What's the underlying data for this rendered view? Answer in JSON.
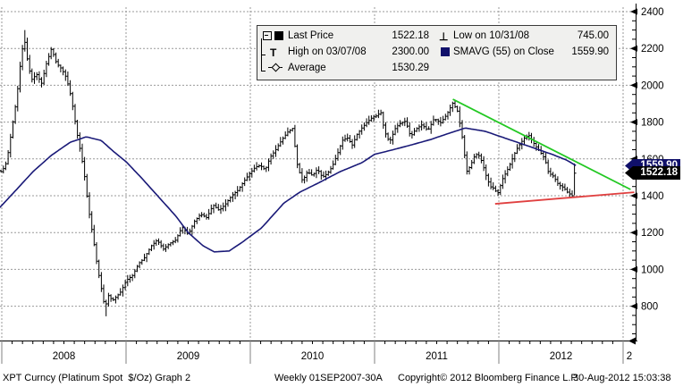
{
  "legend": {
    "col1": [
      {
        "marker": "last-price-square",
        "label": "Last Price",
        "value": "1522.18"
      },
      {
        "marker": "high-marker",
        "label": "High on 03/07/08",
        "value": "2300.00"
      },
      {
        "marker": "average-marker",
        "label": "Average",
        "value": "1530.29"
      }
    ],
    "col2": [
      {
        "marker": "low-marker",
        "label": "Low on 10/31/08",
        "value": "745.00"
      },
      {
        "marker": "smavg-square",
        "label": "SMAVG (55) on Close",
        "value": "1559.90"
      }
    ]
  },
  "price_tags": {
    "smavg_tag": "1559.90",
    "last_tag": "1522.18"
  },
  "footer": {
    "left": "XPT Curncy (Platinum Spot  $/Oz) Graph 2",
    "range": "Weekly 01SEP2007-30A",
    "copyright": "Copyright© 2012 Bloomberg Finance L.P.",
    "timestamp": "30-Aug-2012 15:03:38"
  },
  "colors": {
    "bars": "#000000",
    "smavg": "#1a1a78",
    "trend_green": "#22c822",
    "trend_red": "#e04040",
    "grid": "#999999",
    "axis": "#000000",
    "year_divider": "#808080"
  },
  "chart_data": {
    "type": "ohlc",
    "title": "XPT Curncy (Platinum Spot $/Oz) Weekly",
    "legend_position": "top",
    "grid": true,
    "ylim": [
      595,
      2425
    ],
    "y_ticks": [
      800,
      1000,
      1200,
      1400,
      1600,
      1800,
      2000,
      2200,
      2400
    ],
    "y_minor_step": 50,
    "x_year_boundaries": [
      2008,
      2009,
      2010,
      2011,
      2012,
      2013
    ],
    "year_labels": [
      "2008",
      "2009",
      "2010",
      "2011",
      "2012",
      "2"
    ],
    "x_range": [
      2007.955,
      2012.625
    ],
    "last_price": 1522.18,
    "high": {
      "date": "03/07/08",
      "value": 2300.0
    },
    "low": {
      "date": "10/31/08",
      "value": 745.0
    },
    "average": 1530.29,
    "smavg_last": 1559.9,
    "price_keyframes": [
      [
        2007.955,
        1540
      ],
      [
        2008.0,
        1530
      ],
      [
        2008.04,
        1585
      ],
      [
        2008.08,
        1760
      ],
      [
        2008.12,
        1930
      ],
      [
        2008.15,
        2120
      ],
      [
        2008.18,
        2260
      ],
      [
        2008.21,
        2120
      ],
      [
        2008.24,
        2030
      ],
      [
        2008.28,
        2060
      ],
      [
        2008.32,
        2010
      ],
      [
        2008.36,
        2120
      ],
      [
        2008.4,
        2200
      ],
      [
        2008.44,
        2120
      ],
      [
        2008.48,
        2090
      ],
      [
        2008.52,
        2040
      ],
      [
        2008.56,
        1930
      ],
      [
        2008.6,
        1760
      ],
      [
        2008.63,
        1650
      ],
      [
        2008.66,
        1540
      ],
      [
        2008.7,
        1320
      ],
      [
        2008.74,
        1150
      ],
      [
        2008.77,
        1010
      ],
      [
        2008.8,
        900
      ],
      [
        2008.83,
        790
      ],
      [
        2008.86,
        860
      ],
      [
        2008.89,
        830
      ],
      [
        2008.92,
        850
      ],
      [
        2008.96,
        880
      ],
      [
        2009.0,
        940
      ],
      [
        2009.05,
        965
      ],
      [
        2009.1,
        1030
      ],
      [
        2009.15,
        1065
      ],
      [
        2009.2,
        1125
      ],
      [
        2009.25,
        1160
      ],
      [
        2009.3,
        1110
      ],
      [
        2009.35,
        1140
      ],
      [
        2009.4,
        1160
      ],
      [
        2009.45,
        1230
      ],
      [
        2009.5,
        1190
      ],
      [
        2009.55,
        1260
      ],
      [
        2009.6,
        1300
      ],
      [
        2009.65,
        1280
      ],
      [
        2009.7,
        1350
      ],
      [
        2009.75,
        1320
      ],
      [
        2009.8,
        1355
      ],
      [
        2009.85,
        1400
      ],
      [
        2009.9,
        1430
      ],
      [
        2009.95,
        1480
      ],
      [
        2010.0,
        1525
      ],
      [
        2010.04,
        1555
      ],
      [
        2010.08,
        1565
      ],
      [
        2010.12,
        1540
      ],
      [
        2010.16,
        1610
      ],
      [
        2010.2,
        1645
      ],
      [
        2010.25,
        1700
      ],
      [
        2010.3,
        1745
      ],
      [
        2010.34,
        1765
      ],
      [
        2010.38,
        1560
      ],
      [
        2010.42,
        1480
      ],
      [
        2010.46,
        1530
      ],
      [
        2010.5,
        1510
      ],
      [
        2010.54,
        1545
      ],
      [
        2010.58,
        1500
      ],
      [
        2010.62,
        1520
      ],
      [
        2010.66,
        1560
      ],
      [
        2010.7,
        1625
      ],
      [
        2010.74,
        1700
      ],
      [
        2010.78,
        1715
      ],
      [
        2010.82,
        1675
      ],
      [
        2010.86,
        1735
      ],
      [
        2010.9,
        1770
      ],
      [
        2010.94,
        1800
      ],
      [
        2010.98,
        1825
      ],
      [
        2011.02,
        1835
      ],
      [
        2011.05,
        1855
      ],
      [
        2011.08,
        1750
      ],
      [
        2011.12,
        1690
      ],
      [
        2011.17,
        1770
      ],
      [
        2011.21,
        1795
      ],
      [
        2011.25,
        1805
      ],
      [
        2011.29,
        1720
      ],
      [
        2011.33,
        1760
      ],
      [
        2011.38,
        1785
      ],
      [
        2011.43,
        1755
      ],
      [
        2011.48,
        1820
      ],
      [
        2011.53,
        1795
      ],
      [
        2011.58,
        1840
      ],
      [
        2011.63,
        1905
      ],
      [
        2011.67,
        1855
      ],
      [
        2011.71,
        1700
      ],
      [
        2011.74,
        1530
      ],
      [
        2011.77,
        1560
      ],
      [
        2011.8,
        1610
      ],
      [
        2011.83,
        1630
      ],
      [
        2011.86,
        1590
      ],
      [
        2011.9,
        1505
      ],
      [
        2011.93,
        1450
      ],
      [
        2011.96,
        1440
      ],
      [
        2011.99,
        1410
      ],
      [
        2012.03,
        1490
      ],
      [
        2012.08,
        1555
      ],
      [
        2012.14,
        1650
      ],
      [
        2012.2,
        1710
      ],
      [
        2012.24,
        1730
      ],
      [
        2012.29,
        1675
      ],
      [
        2012.33,
        1640
      ],
      [
        2012.37,
        1600
      ],
      [
        2012.4,
        1525
      ],
      [
        2012.44,
        1505
      ],
      [
        2012.48,
        1460
      ],
      [
        2012.52,
        1445
      ],
      [
        2012.55,
        1420
      ],
      [
        2012.58,
        1405
      ],
      [
        2012.6,
        1395
      ],
      [
        2012.625,
        1522.18
      ]
    ],
    "special_bars": [
      {
        "year": 2008.186,
        "high": 2300
      },
      {
        "year": 2008.83,
        "low": 745
      },
      {
        "year": 2012.61,
        "close": 1522.18,
        "high": 1575,
        "low": 1404
      }
    ],
    "smavg_keyframes": [
      [
        2007.955,
        1315
      ],
      [
        2008.1,
        1420
      ],
      [
        2008.25,
        1530
      ],
      [
        2008.4,
        1620
      ],
      [
        2008.55,
        1690
      ],
      [
        2008.68,
        1720
      ],
      [
        2008.8,
        1700
      ],
      [
        2008.9,
        1640
      ],
      [
        2009.0,
        1585
      ],
      [
        2009.12,
        1500
      ],
      [
        2009.28,
        1380
      ],
      [
        2009.4,
        1290
      ],
      [
        2009.5,
        1200
      ],
      [
        2009.62,
        1128
      ],
      [
        2009.71,
        1095
      ],
      [
        2009.83,
        1100
      ],
      [
        2009.94,
        1150
      ],
      [
        2010.09,
        1225
      ],
      [
        2010.27,
        1360
      ],
      [
        2010.4,
        1420
      ],
      [
        2010.55,
        1470
      ],
      [
        2010.72,
        1530
      ],
      [
        2010.9,
        1580
      ],
      [
        2011.0,
        1625
      ],
      [
        2011.15,
        1650
      ],
      [
        2011.29,
        1675
      ],
      [
        2011.45,
        1705
      ],
      [
        2011.58,
        1735
      ],
      [
        2011.73,
        1768
      ],
      [
        2011.89,
        1750
      ],
      [
        2012.01,
        1722
      ],
      [
        2012.15,
        1690
      ],
      [
        2012.3,
        1655
      ],
      [
        2012.44,
        1622
      ],
      [
        2012.55,
        1592
      ],
      [
        2012.63,
        1559.9
      ]
    ],
    "trendlines": [
      {
        "name": "descending-resistance",
        "color": "#22c822",
        "from": [
          2011.63,
          1924
        ],
        "to": [
          2013.06,
          1434
        ]
      },
      {
        "name": "ascending-support",
        "color": "#e04040",
        "from": [
          2011.97,
          1356
        ],
        "to": [
          2013.09,
          1419
        ]
      }
    ]
  }
}
